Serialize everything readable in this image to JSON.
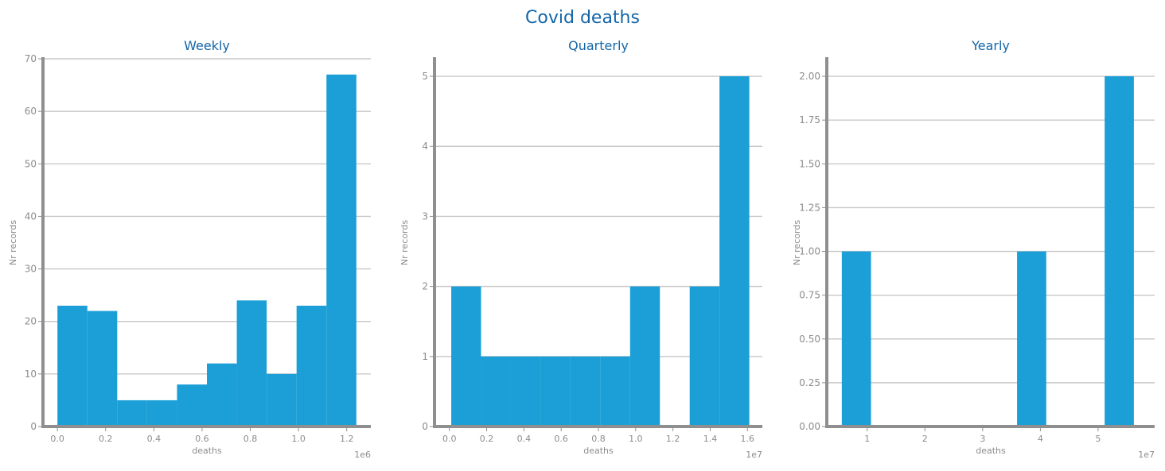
{
  "figure": {
    "title": "Covid deaths"
  },
  "colors": {
    "bar": "#1b9fd6",
    "grid": "#c8c8c8",
    "spine": "#8f8f8f",
    "title": "#1366a8",
    "tick": "#8c8c8c"
  },
  "chart_data": [
    {
      "type": "bar",
      "title": "Weekly",
      "xlabel": "deaths",
      "ylabel": "Nr records",
      "x_offset_label": "1e6",
      "grid": true,
      "xlim": [
        -0.06,
        1.3
      ],
      "ylim": [
        0,
        70
      ],
      "xticks": [
        0.0,
        0.2,
        0.4,
        0.6,
        0.8,
        1.0,
        1.2
      ],
      "xtick_labels": [
        "0.0",
        "0.2",
        "0.4",
        "0.6",
        "0.8",
        "1.0",
        "1.2"
      ],
      "yticks": [
        0,
        10,
        20,
        30,
        40,
        50,
        60,
        70
      ],
      "ytick_labels": [
        "0",
        "10",
        "20",
        "30",
        "40",
        "50",
        "60",
        "70"
      ],
      "bin_edges": [
        0.0,
        0.124,
        0.248,
        0.372,
        0.496,
        0.62,
        0.744,
        0.868,
        0.992,
        1.116,
        1.24
      ],
      "values": [
        23,
        22,
        5,
        5,
        8,
        12,
        24,
        10,
        23,
        67
      ]
    },
    {
      "type": "bar",
      "title": "Quarterly",
      "xlabel": "deaths",
      "ylabel": "Nr records",
      "x_offset_label": "1e7",
      "grid": true,
      "xlim": [
        -0.08,
        1.68
      ],
      "ylim": [
        0,
        5.25
      ],
      "xticks": [
        0.0,
        0.2,
        0.4,
        0.6,
        0.8,
        1.0,
        1.2,
        1.4,
        1.6
      ],
      "xtick_labels": [
        "0.0",
        "0.2",
        "0.4",
        "0.6",
        "0.8",
        "1.0",
        "1.2",
        "1.4",
        "1.6"
      ],
      "yticks": [
        0,
        1,
        2,
        3,
        4,
        5
      ],
      "ytick_labels": [
        "0",
        "1",
        "2",
        "3",
        "4",
        "5"
      ],
      "bin_edges": [
        0.01,
        0.17,
        0.33,
        0.49,
        0.65,
        0.81,
        0.97,
        1.13,
        1.29,
        1.45,
        1.61
      ],
      "values": [
        2,
        1,
        1,
        1,
        1,
        1,
        2,
        0,
        2,
        5
      ]
    },
    {
      "type": "bar",
      "title": "Yearly",
      "xlabel": "deaths",
      "ylabel": "Nr records",
      "x_offset_label": "1e7",
      "grid": true,
      "xlim": [
        0.3,
        5.98
      ],
      "ylim": [
        0,
        2.1
      ],
      "xticks": [
        1,
        2,
        3,
        4,
        5
      ],
      "xtick_labels": [
        "1",
        "2",
        "3",
        "4",
        "5"
      ],
      "yticks": [
        0.0,
        0.25,
        0.5,
        0.75,
        1.0,
        1.25,
        1.5,
        1.75,
        2.0
      ],
      "ytick_labels": [
        "0.00",
        "0.25",
        "0.50",
        "0.75",
        "1.00",
        "1.25",
        "1.50",
        "1.75",
        "2.00"
      ],
      "bin_edges": [
        0.56,
        1.066,
        1.572,
        2.078,
        2.584,
        3.09,
        3.596,
        4.102,
        4.608,
        5.114,
        5.62
      ],
      "values": [
        1,
        0,
        0,
        0,
        0,
        0,
        1,
        0,
        0,
        2
      ]
    }
  ]
}
